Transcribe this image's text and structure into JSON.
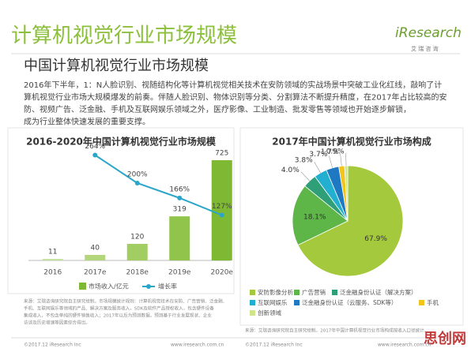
{
  "header": {
    "title": "计算机视觉行业市场规模",
    "logo": "iResearch",
    "logo_sub": "艾 瑞 咨 询",
    "subtitle": "中国计算机视觉行业市场规模"
  },
  "paragraph": [
    "2016年下半年，1：N人脸识别、视随结构化等计算机视觉相关技术在安防领域的实战场景中突破工业化红线，敲响了计",
    "算机视觉行业市场大规模爆发的前奏。伴随人脸识别、物体识别等分类、分割算法不断提升精度，在2017年占比较高的安",
    "防、视频广告、泛金融、手机及互联网娱乐领域之外，医疗影像、工业制造、批发零售等领域也开始逐步解锁，",
    "成为行业整体快速发展的重要支撑。"
  ],
  "chart_data": [
    {
      "type": "bar",
      "title": "2016-2020年中国计算机视觉行业市场规模",
      "categories": [
        "2016",
        "2017e",
        "2018e",
        "2019e",
        "2020e"
      ],
      "series": [
        {
          "name": "市场收入/亿元",
          "type": "bar",
          "colors": [
            "#c5df9c",
            "#b3d67c",
            "#a2cd62",
            "#91c44a",
            "#7fb832"
          ],
          "values": [
            11,
            40,
            120,
            319,
            725
          ]
        },
        {
          "name": "增长率",
          "type": "line",
          "color": "#2aa6c9",
          "values": [
            null,
            264,
            200,
            166,
            127
          ],
          "value_labels": [
            null,
            "264%",
            "200%",
            "166%",
            "127%"
          ]
        }
      ]
    },
    {
      "type": "pie",
      "title": "2017年中国计算机视觉行业市场构成",
      "categories": [
        "安防影像分析",
        "广告营销",
        "泛金融身份认证（解决方案）",
        "互联网娱乐",
        "泛金融身份认证（云服务、SDK等）",
        "手机",
        "创新领域"
      ],
      "values": [
        67.9,
        18.1,
        4.0,
        3.8,
        3.7,
        1.7,
        0.9
      ],
      "value_labels": [
        "67.9%",
        "18.1%",
        "4.0%",
        "3.8%",
        "3.7%",
        "1.7%",
        "0.9%"
      ],
      "colors": [
        "#a5c93c",
        "#5db647",
        "#2f9f78",
        "#23afd0",
        "#1f78c2",
        "#f3c41a",
        "#cfe58a"
      ]
    }
  ],
  "footer": {
    "source_left": [
      "来源：艾瑞咨询研究院自主研究绘制。市场规模统计规则：计算机视觉技术在安防、广告营销、泛金融、",
      "手机、互联网娱乐等领域的产品、解决方案及服务收入，SDK及软件产品授权收入，包含硬件设备",
      "集成收入，不包含单纯的硬件销售收入；2017年以后为预测数据，预测基于行业发展现状、企业",
      "访谈及历史增速等因素综合得出。"
    ],
    "source_right": "来源：艾瑞咨询研究院自主研究绘制。2017年中国计算机视觉行业市场构成按收入口径统计。",
    "copyright_left": "©2017.12 iResearch Inc",
    "url_left": "www.iresearch.com.cn",
    "copyright_right": "©2017.12 iResearch Inc",
    "url_right": "www.iresearch.com.cn"
  },
  "watermark": "思创网"
}
